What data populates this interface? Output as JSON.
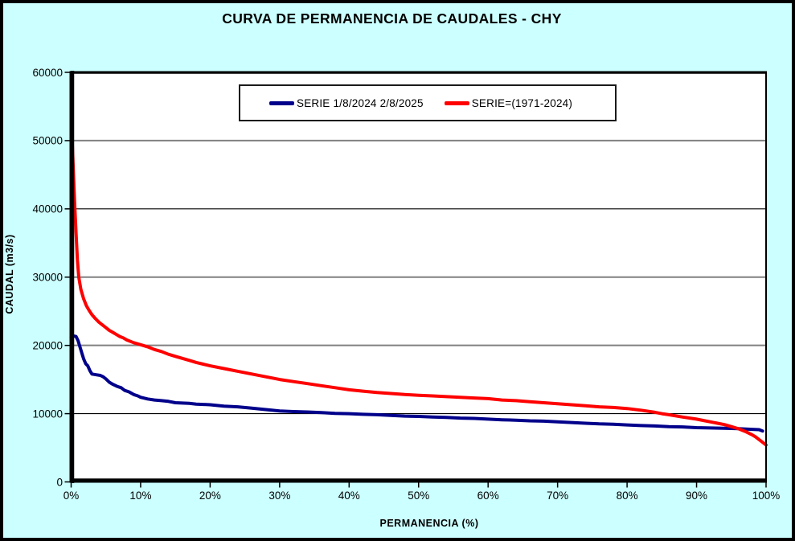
{
  "title": "CURVA DE PERMANENCIA DE CAUDALES - CHY",
  "colors": {
    "background": "#CCFFFF",
    "plot_background": "#FFFFFF",
    "grid_gray": "#808080",
    "grid_black": "#000000",
    "axis": "#000000",
    "series_blue": "#00008B",
    "series_red": "#FF0000"
  },
  "chart_data": {
    "type": "line",
    "title": "CURVA DE PERMANENCIA DE CAUDALES - CHY",
    "xlabel": "PERMANENCIA (%)",
    "ylabel": "CAUDAL (m3/s)",
    "xlim": [
      0,
      100
    ],
    "ylim": [
      0,
      60000
    ],
    "x_ticks": [
      0,
      10,
      20,
      30,
      40,
      50,
      60,
      70,
      80,
      90,
      100
    ],
    "x_tick_labels": [
      "0%",
      "10%",
      "20%",
      "30%",
      "40%",
      "50%",
      "60%",
      "70%",
      "80%",
      "90%",
      "100%"
    ],
    "y_ticks": [
      0,
      10000,
      20000,
      30000,
      40000,
      50000,
      60000
    ],
    "grid": "horizontal",
    "legend_position": "top-center",
    "series": [
      {
        "name": "SERIE 1/8/2024 2/8/2025",
        "color": "#00008B",
        "points": [
          [
            0,
            21200
          ],
          [
            0.3,
            21400
          ],
          [
            0.7,
            21300
          ],
          [
            1.0,
            20700
          ],
          [
            1.2,
            20000
          ],
          [
            1.5,
            19000
          ],
          [
            1.8,
            18000
          ],
          [
            2.1,
            17300
          ],
          [
            2.4,
            17000
          ],
          [
            2.7,
            16300
          ],
          [
            3.0,
            15800
          ],
          [
            3.6,
            15700
          ],
          [
            4.2,
            15600
          ],
          [
            4.6,
            15400
          ],
          [
            5.0,
            15100
          ],
          [
            5.5,
            14600
          ],
          [
            6.0,
            14300
          ],
          [
            6.6,
            14000
          ],
          [
            7.2,
            13800
          ],
          [
            7.7,
            13400
          ],
          [
            8.3,
            13200
          ],
          [
            9.0,
            12800
          ],
          [
            9.6,
            12600
          ],
          [
            10,
            12400
          ],
          [
            11,
            12150
          ],
          [
            12,
            12000
          ],
          [
            13,
            11900
          ],
          [
            14,
            11800
          ],
          [
            15,
            11600
          ],
          [
            16,
            11550
          ],
          [
            17,
            11500
          ],
          [
            18,
            11400
          ],
          [
            19,
            11350
          ],
          [
            20,
            11300
          ],
          [
            22,
            11100
          ],
          [
            24,
            11000
          ],
          [
            26,
            10800
          ],
          [
            28,
            10600
          ],
          [
            30,
            10400
          ],
          [
            32,
            10300
          ],
          [
            34,
            10250
          ],
          [
            36,
            10150
          ],
          [
            38,
            10050
          ],
          [
            40,
            10000
          ],
          [
            42,
            9900
          ],
          [
            44,
            9850
          ],
          [
            46,
            9750
          ],
          [
            48,
            9650
          ],
          [
            50,
            9600
          ],
          [
            52,
            9500
          ],
          [
            54,
            9450
          ],
          [
            56,
            9350
          ],
          [
            58,
            9300
          ],
          [
            60,
            9200
          ],
          [
            62,
            9100
          ],
          [
            64,
            9050
          ],
          [
            66,
            8950
          ],
          [
            68,
            8900
          ],
          [
            70,
            8800
          ],
          [
            72,
            8700
          ],
          [
            74,
            8600
          ],
          [
            76,
            8500
          ],
          [
            78,
            8450
          ],
          [
            80,
            8350
          ],
          [
            82,
            8250
          ],
          [
            84,
            8200
          ],
          [
            86,
            8100
          ],
          [
            88,
            8050
          ],
          [
            90,
            7950
          ],
          [
            92,
            7900
          ],
          [
            94,
            7850
          ],
          [
            96,
            7800
          ],
          [
            98,
            7700
          ],
          [
            99,
            7650
          ],
          [
            99.5,
            7450
          ]
        ]
      },
      {
        "name": "SERIE=(1971-2024)",
        "color": "#FF0000",
        "points": [
          [
            0,
            51000
          ],
          [
            0.15,
            50000
          ],
          [
            0.3,
            46000
          ],
          [
            0.5,
            41000
          ],
          [
            0.7,
            36500
          ],
          [
            0.9,
            32500
          ],
          [
            1.1,
            30000
          ],
          [
            1.4,
            28200
          ],
          [
            1.8,
            26800
          ],
          [
            2.2,
            25800
          ],
          [
            2.6,
            25100
          ],
          [
            3.0,
            24500
          ],
          [
            3.5,
            23900
          ],
          [
            4.0,
            23400
          ],
          [
            4.5,
            23000
          ],
          [
            5.0,
            22600
          ],
          [
            5.5,
            22200
          ],
          [
            6.0,
            21900
          ],
          [
            6.5,
            21600
          ],
          [
            7.0,
            21300
          ],
          [
            7.5,
            21100
          ],
          [
            8.0,
            20800
          ],
          [
            9.0,
            20400
          ],
          [
            10,
            20100
          ],
          [
            11,
            19800
          ],
          [
            12,
            19400
          ],
          [
            13,
            19100
          ],
          [
            14,
            18700
          ],
          [
            15,
            18400
          ],
          [
            16,
            18100
          ],
          [
            17,
            17800
          ],
          [
            18,
            17500
          ],
          [
            19,
            17250
          ],
          [
            20,
            17000
          ],
          [
            22,
            16600
          ],
          [
            24,
            16200
          ],
          [
            26,
            15800
          ],
          [
            28,
            15400
          ],
          [
            30,
            15000
          ],
          [
            32,
            14700
          ],
          [
            34,
            14400
          ],
          [
            36,
            14100
          ],
          [
            38,
            13800
          ],
          [
            40,
            13500
          ],
          [
            42,
            13300
          ],
          [
            44,
            13100
          ],
          [
            46,
            12950
          ],
          [
            48,
            12800
          ],
          [
            50,
            12700
          ],
          [
            52,
            12600
          ],
          [
            54,
            12500
          ],
          [
            56,
            12400
          ],
          [
            58,
            12300
          ],
          [
            60,
            12200
          ],
          [
            62,
            12000
          ],
          [
            64,
            11900
          ],
          [
            66,
            11750
          ],
          [
            68,
            11600
          ],
          [
            70,
            11450
          ],
          [
            72,
            11300
          ],
          [
            74,
            11150
          ],
          [
            76,
            11000
          ],
          [
            78,
            10900
          ],
          [
            80,
            10750
          ],
          [
            82,
            10500
          ],
          [
            84,
            10200
          ],
          [
            85,
            10000
          ],
          [
            86,
            9850
          ],
          [
            88,
            9500
          ],
          [
            90,
            9200
          ],
          [
            91,
            9000
          ],
          [
            92,
            8800
          ],
          [
            93,
            8600
          ],
          [
            94,
            8400
          ],
          [
            95,
            8100
          ],
          [
            96,
            7800
          ],
          [
            97,
            7400
          ],
          [
            98,
            6900
          ],
          [
            98.5,
            6600
          ],
          [
            99,
            6200
          ],
          [
            99.5,
            5800
          ],
          [
            100,
            5400
          ]
        ]
      }
    ]
  }
}
